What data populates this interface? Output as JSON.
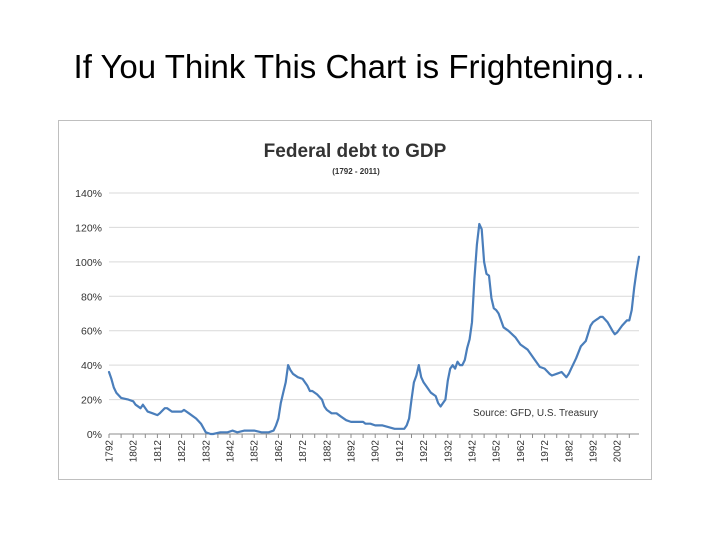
{
  "slide": {
    "title": "If You Think This Chart is Frightening…"
  },
  "chart_data": {
    "type": "line",
    "title": "Federal debt to GDP",
    "subtitle": "(1792 - 2011)",
    "source": "Source: GFD, U.S. Treasury",
    "xlabel": "",
    "ylabel": "",
    "ylim": [
      0,
      140
    ],
    "xlim": [
      1792,
      2011
    ],
    "y_ticks": [
      {
        "value": 0,
        "label": "0%"
      },
      {
        "value": 20,
        "label": "20%"
      },
      {
        "value": 40,
        "label": "40%"
      },
      {
        "value": 60,
        "label": "60%"
      },
      {
        "value": 80,
        "label": "80%"
      },
      {
        "value": 100,
        "label": "100%"
      },
      {
        "value": 120,
        "label": "120%"
      },
      {
        "value": 140,
        "label": "140%"
      }
    ],
    "x_ticks": [
      "1792",
      "1802",
      "1812",
      "1822",
      "1832",
      "1842",
      "1852",
      "1862",
      "1872",
      "1882",
      "1892",
      "1902",
      "1912",
      "1922",
      "1932",
      "1942",
      "1952",
      "1962",
      "1972",
      "1982",
      "1992",
      "2002"
    ],
    "grid": true,
    "line_color": "#4a7ebb",
    "series": [
      {
        "x": [
          1792,
          1793,
          1794,
          1795,
          1797,
          1800,
          1802,
          1803,
          1805,
          1806,
          1808,
          1810,
          1812,
          1813,
          1815,
          1816,
          1818,
          1820,
          1822,
          1823,
          1825,
          1828,
          1830,
          1832,
          1834,
          1835,
          1838,
          1841,
          1843,
          1845,
          1848,
          1850,
          1852,
          1855,
          1857,
          1858,
          1860,
          1861,
          1862,
          1863,
          1864,
          1865,
          1866,
          1867,
          1868,
          1870,
          1872,
          1874,
          1875,
          1876,
          1878,
          1880,
          1881,
          1882,
          1884,
          1886,
          1888,
          1890,
          1892,
          1895,
          1897,
          1898,
          1900,
          1902,
          1905,
          1910,
          1913,
          1914,
          1915,
          1916,
          1917,
          1918,
          1919,
          1920,
          1921,
          1922,
          1923,
          1925,
          1927,
          1928,
          1929,
          1930,
          1931,
          1932,
          1933,
          1934,
          1935,
          1936,
          1937,
          1938,
          1939,
          1940,
          1941,
          1942,
          1943,
          1944,
          1945,
          1946,
          1947,
          1948,
          1949,
          1950,
          1951,
          1952,
          1953,
          1955,
          1957,
          1960,
          1962,
          1965,
          1968,
          1970,
          1972,
          1974,
          1975,
          1977,
          1979,
          1981,
          1982,
          1983,
          1985,
          1987,
          1989,
          1991,
          1992,
          1993,
          1994,
          1995,
          1996,
          1998,
          2000,
          2001,
          2002,
          2004,
          2006,
          2007,
          2008,
          2009,
          2010,
          2011
        ],
        "values": [
          36,
          32,
          27,
          24,
          21,
          20,
          19,
          17,
          15,
          17,
          13,
          12,
          11,
          12,
          15,
          15,
          13,
          13,
          13,
          14,
          12,
          9,
          6,
          1,
          0,
          0,
          1,
          1,
          2,
          1,
          2,
          2,
          2,
          1,
          1,
          1,
          2,
          5,
          9,
          18,
          24,
          30,
          40,
          37,
          35,
          33,
          32,
          28,
          25,
          25,
          23,
          20,
          16,
          14,
          12,
          12,
          10,
          8,
          7,
          7,
          7,
          6,
          6,
          5,
          5,
          3,
          3,
          3,
          5,
          9,
          20,
          30,
          34,
          40,
          33,
          30,
          28,
          24,
          22,
          18,
          16,
          18,
          20,
          31,
          38,
          40,
          38,
          42,
          40,
          40,
          43,
          50,
          55,
          65,
          90,
          110,
          122,
          119,
          100,
          93,
          92,
          79,
          73,
          72,
          70,
          62,
          60,
          56,
          52,
          49,
          43,
          39,
          38,
          35,
          34,
          35,
          36,
          33,
          35,
          38,
          44,
          51,
          54,
          63,
          65,
          66,
          67,
          68,
          68,
          65,
          60,
          58,
          59,
          63,
          66,
          66,
          72,
          85,
          95,
          103
        ]
      }
    ]
  }
}
